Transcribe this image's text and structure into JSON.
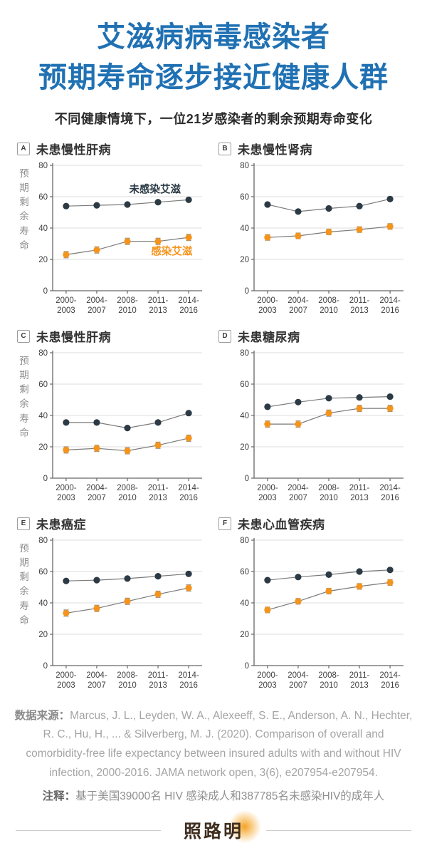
{
  "header": {
    "title_line1": "艾滋病病毒感染者",
    "title_line2": "预期寿命逐步接近健康人群",
    "subtitle": "不同健康情境下，一位21岁感染者的剩余预期寿命变化"
  },
  "axis": {
    "y_label": "预期剩余寿命",
    "y_ticks": [
      0,
      20,
      40,
      60,
      80
    ],
    "y_max": 80,
    "x_tick_lines": [
      [
        "2000-",
        "2003"
      ],
      [
        "2004-",
        "2007"
      ],
      [
        "2008-",
        "2010"
      ],
      [
        "2011-",
        "2013"
      ],
      [
        "2014-",
        "2016"
      ]
    ]
  },
  "legend": {
    "uninfected": "未感染艾滋",
    "infected": "感染艾滋"
  },
  "colors": {
    "title_blue": "#2071b3",
    "uninfected": "#2b3a44",
    "infected": "#f5941d",
    "connector": "#7a7a7a",
    "grid": "#e3e3e3",
    "axis": "#666666",
    "tick_text": "#3f3f3f",
    "error_bar": "#8a8a8a"
  },
  "chart_data": [
    {
      "panel": "A",
      "type": "line",
      "title": "未患慢性肝病",
      "ylim": [
        0,
        80
      ],
      "grid": true,
      "show_y_label": true,
      "show_legend": true,
      "categories": [
        "2000-2003",
        "2004-2007",
        "2008-2010",
        "2011-2013",
        "2014-2016"
      ],
      "series": [
        {
          "name": "未感染艾滋",
          "values": [
            54,
            54.5,
            55,
            56.5,
            58
          ]
        },
        {
          "name": "感染艾滋",
          "values": [
            23,
            26,
            31.5,
            31.5,
            34
          ],
          "error_bars": 2
        }
      ]
    },
    {
      "panel": "B",
      "type": "line",
      "title": "未患慢性肾病",
      "ylim": [
        0,
        80
      ],
      "grid": true,
      "show_y_label": false,
      "show_legend": false,
      "categories": [
        "2000-2003",
        "2004-2007",
        "2008-2010",
        "2011-2013",
        "2014-2016"
      ],
      "series": [
        {
          "name": "未感染艾滋",
          "values": [
            55,
            50.5,
            52.5,
            54,
            58.5
          ]
        },
        {
          "name": "感染艾滋",
          "values": [
            34,
            35,
            37.5,
            39,
            41
          ],
          "error_bars": 1.8
        }
      ]
    },
    {
      "panel": "C",
      "type": "line",
      "title": "未患慢性肝病",
      "ylim": [
        0,
        80
      ],
      "grid": true,
      "show_y_label": true,
      "show_legend": false,
      "categories": [
        "2000-2003",
        "2004-2007",
        "2008-2010",
        "2011-2013",
        "2014-2016"
      ],
      "series": [
        {
          "name": "未感染艾滋",
          "values": [
            35.5,
            35.5,
            32,
            35.5,
            41.5
          ]
        },
        {
          "name": "感染艾滋",
          "values": [
            18,
            19,
            17.5,
            21,
            25.5
          ],
          "error_bars": 2
        }
      ]
    },
    {
      "panel": "D",
      "type": "line",
      "title": "未患糖尿病",
      "ylim": [
        0,
        80
      ],
      "grid": true,
      "show_y_label": false,
      "show_legend": false,
      "categories": [
        "2000-2003",
        "2004-2007",
        "2008-2010",
        "2011-2013",
        "2014-2016"
      ],
      "series": [
        {
          "name": "未感染艾滋",
          "values": [
            45.5,
            48.5,
            51,
            51.5,
            52
          ]
        },
        {
          "name": "感染艾滋",
          "values": [
            34.5,
            34.5,
            41.5,
            44.5,
            44.5
          ],
          "error_bars": 2
        }
      ]
    },
    {
      "panel": "E",
      "type": "line",
      "title": "未患癌症",
      "ylim": [
        0,
        80
      ],
      "grid": true,
      "show_y_label": true,
      "show_legend": false,
      "categories": [
        "2000-2003",
        "2004-2007",
        "2008-2010",
        "2011-2013",
        "2014-2016"
      ],
      "series": [
        {
          "name": "未感染艾滋",
          "values": [
            54,
            54.5,
            55.5,
            57,
            58.5
          ]
        },
        {
          "name": "感染艾滋",
          "values": [
            33.5,
            36.5,
            41,
            45.5,
            49.5
          ],
          "error_bars": 2
        }
      ]
    },
    {
      "panel": "F",
      "type": "line",
      "title": "未患心血管疾病",
      "ylim": [
        0,
        80
      ],
      "grid": true,
      "show_y_label": false,
      "show_legend": false,
      "categories": [
        "2000-2003",
        "2004-2007",
        "2008-2010",
        "2011-2013",
        "2014-2016"
      ],
      "series": [
        {
          "name": "未感染艾滋",
          "values": [
            54.5,
            56.5,
            58,
            60,
            61
          ]
        },
        {
          "name": "感染艾滋",
          "values": [
            35.5,
            41,
            47.5,
            50.5,
            53
          ],
          "error_bars": 1.8
        }
      ]
    }
  ],
  "footer": {
    "source_label": "数据来源：",
    "source_text": "Marcus, J. L., Leyden, W. A., Alexeeff, S. E., Anderson, A. N., Hechter, R. C., Hu, H., ... & Silverberg, M. J. (2020). Comparison of overall and comorbidity-free life expectancy between insured adults with and without HIV infection, 2000-2016. JAMA network open, 3(6), e207954-e207954.",
    "note_label": "注释：",
    "note_text": "基于美国39000名 HIV 感染成人和387785名未感染HIV的成年人",
    "logo_text": "照路明"
  }
}
